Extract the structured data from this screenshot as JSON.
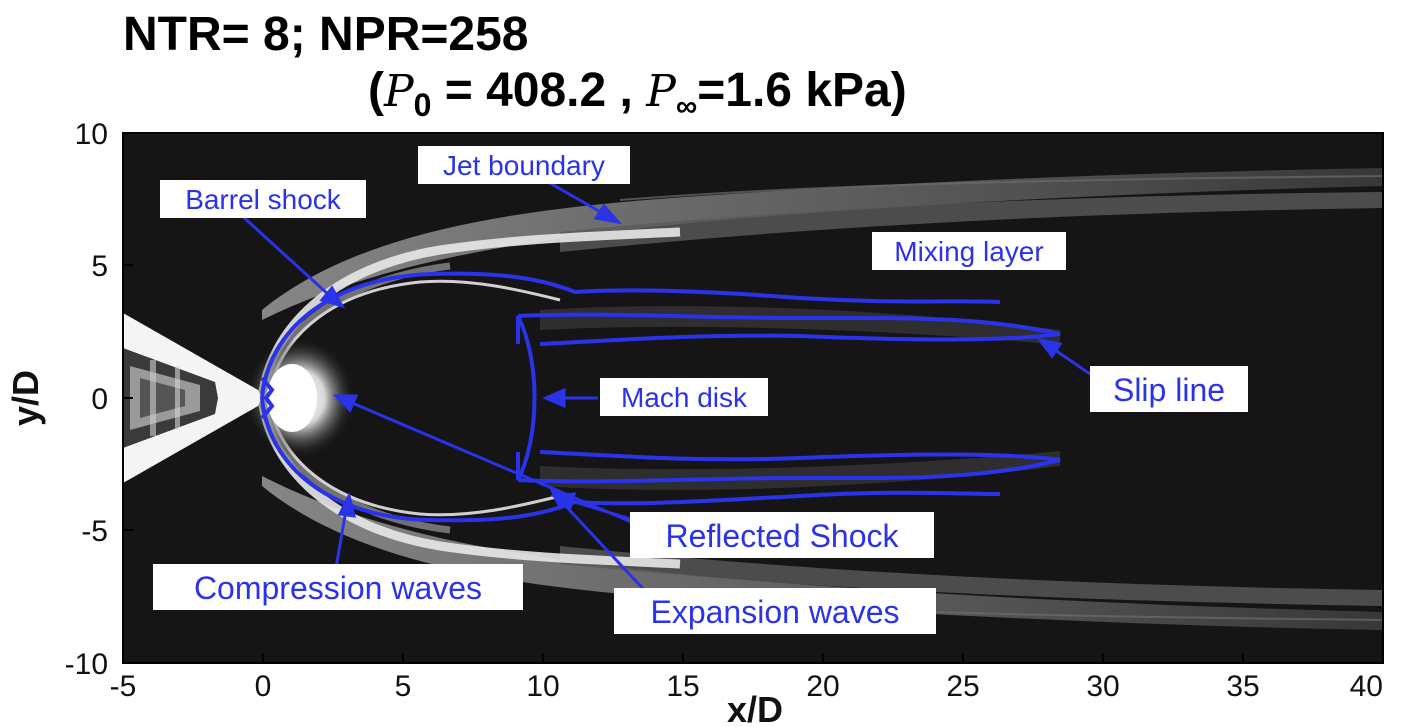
{
  "title": {
    "line1": "NTR= 8; NPR=258",
    "line2_open": "(",
    "p0_symbol": "P",
    "p0_sub": "0",
    "p0_eq": " = 408.2 , ",
    "pinf_symbol": "P",
    "pinf_sub": "∞",
    "pinf_eq": "=1.6 kPa)"
  },
  "axes": {
    "xlabel": "x/D",
    "ylabel": "y/D",
    "xlim": [
      -5,
      40
    ],
    "ylim": [
      -10,
      10
    ],
    "xticks": [
      "-5",
      "0",
      "5",
      "10",
      "15",
      "20",
      "25",
      "30",
      "35",
      "40"
    ],
    "yticks": [
      "10",
      "5",
      "0",
      "-5",
      "-10"
    ]
  },
  "annotations": {
    "jet_boundary": "Jet boundary",
    "barrel_shock": "Barrel shock",
    "mixing_layer": "Mixing layer",
    "slip_line": "Slip line",
    "mach_disk": "Mach disk",
    "reflected_shock": "Reflected Shock",
    "compression_waves": "Compression waves",
    "expansion_waves": "Expansion waves"
  },
  "colors": {
    "annotation": "#2a33e8",
    "field_background": "#151515"
  }
}
